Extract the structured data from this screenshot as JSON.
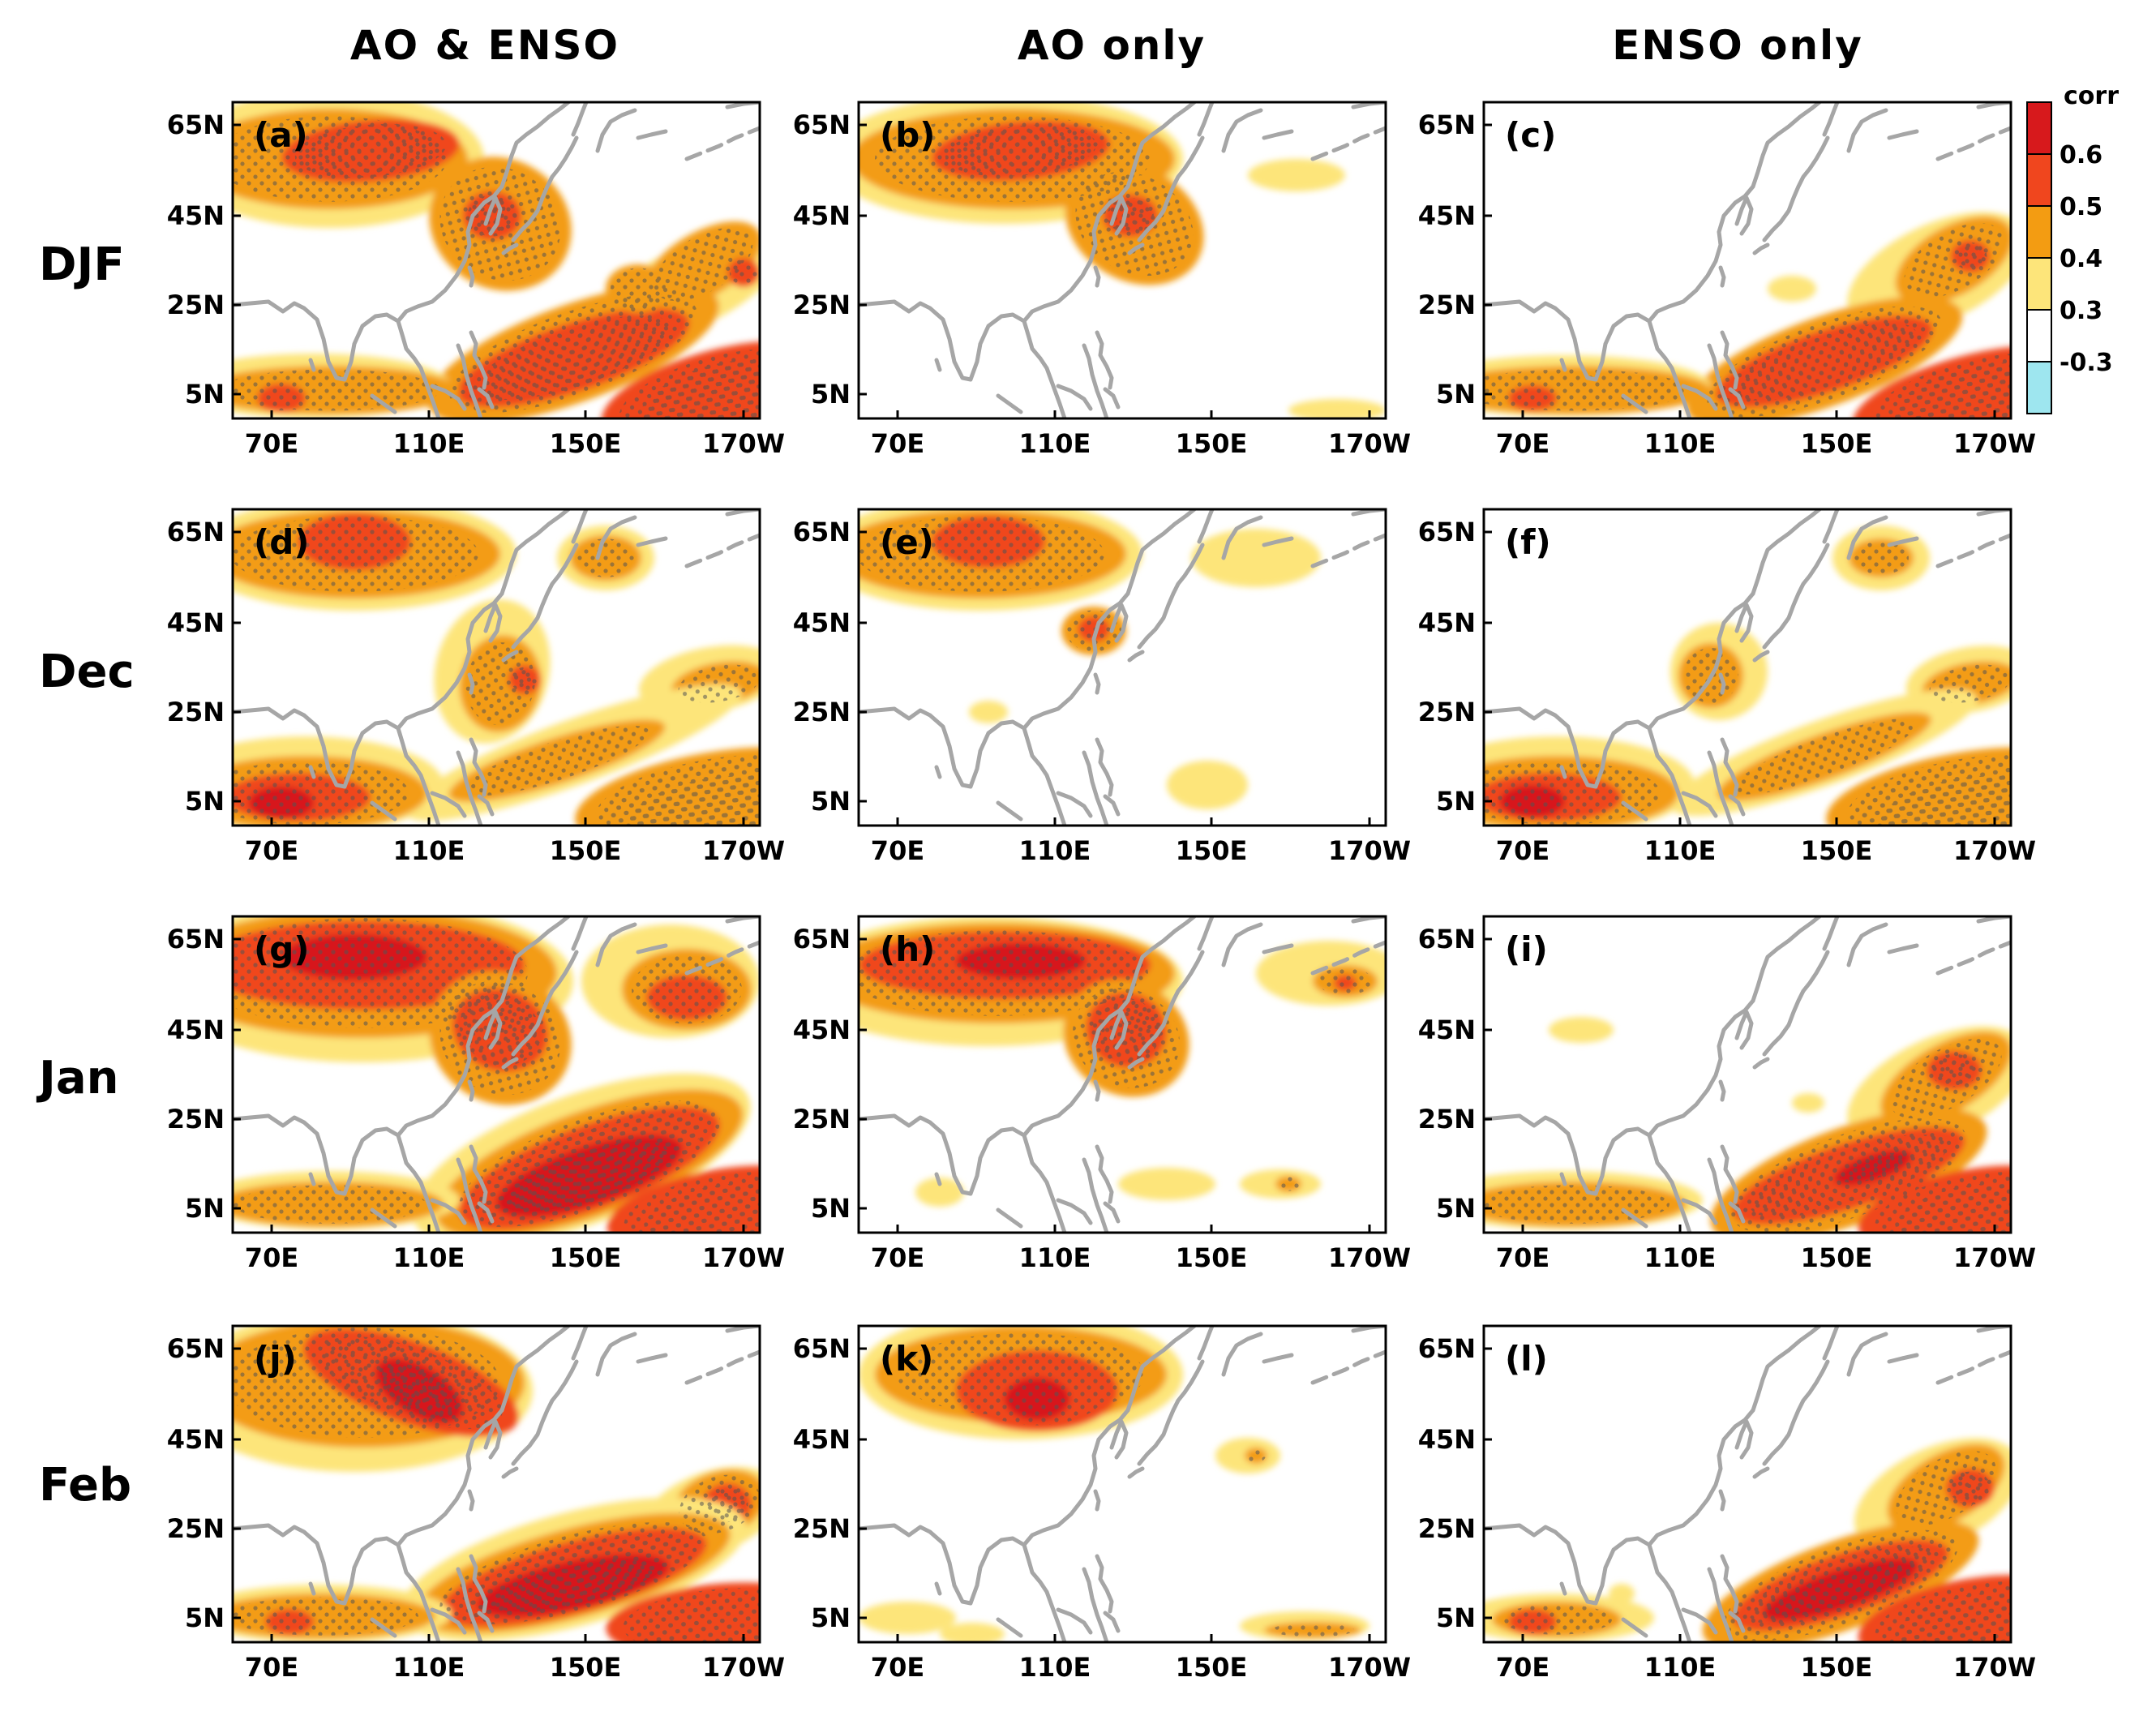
{
  "column_titles": [
    "AO & ENSO",
    "AO only",
    "ENSO only"
  ],
  "row_labels": [
    "DJF",
    "Dec",
    "Jan",
    "Feb"
  ],
  "panel_labels": [
    "(a)",
    "(b)",
    "(c)",
    "(d)",
    "(e)",
    "(f)",
    "(g)",
    "(h)",
    "(i)",
    "(j)",
    "(k)",
    "(l)"
  ],
  "lat_ticks": [
    "65N",
    "45N",
    "25N",
    "5N"
  ],
  "lon_ticks": [
    "70E",
    "110E",
    "150E",
    "170W"
  ],
  "colorbar": {
    "title": "corr",
    "labels": [
      "0.6",
      "0.5",
      "0.4",
      "0.3",
      "-0.3"
    ],
    "colors": [
      "#d7191c",
      "#f0461e",
      "#f39c12",
      "#fde57a",
      "#ffffff",
      "#9ee6ef"
    ]
  },
  "stipple_color": "#555555",
  "coast_color": "#a6a6a6"
}
